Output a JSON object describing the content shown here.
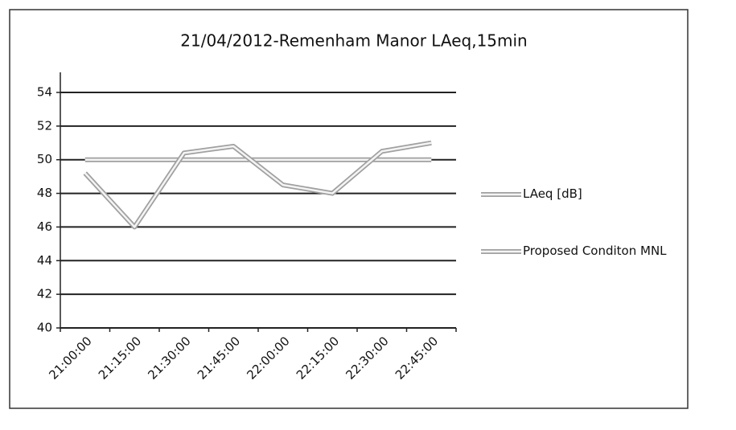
{
  "chart_data": {
    "type": "line",
    "title": "21/04/2012-Remenham Manor LAeq,15min",
    "categories": [
      "21:00:00",
      "21:15:00",
      "21:30:00",
      "21:45:00",
      "22:00:00",
      "22:15:00",
      "22:30:00",
      "22:45:00"
    ],
    "series": [
      {
        "name": "LAeq [dB]",
        "color": "#a0a0a0",
        "values": [
          49.2,
          46.0,
          50.4,
          50.8,
          48.5,
          48.0,
          50.5,
          51.0
        ]
      },
      {
        "name": "Proposed Conditon MNL",
        "color": "#a0a0a0",
        "values": [
          50,
          50,
          50,
          50,
          50,
          50,
          50,
          50
        ]
      }
    ],
    "ylim": [
      40,
      54
    ],
    "yticks": [
      40,
      42,
      44,
      46,
      48,
      50,
      52,
      54
    ],
    "grid": true,
    "legend": "right"
  }
}
